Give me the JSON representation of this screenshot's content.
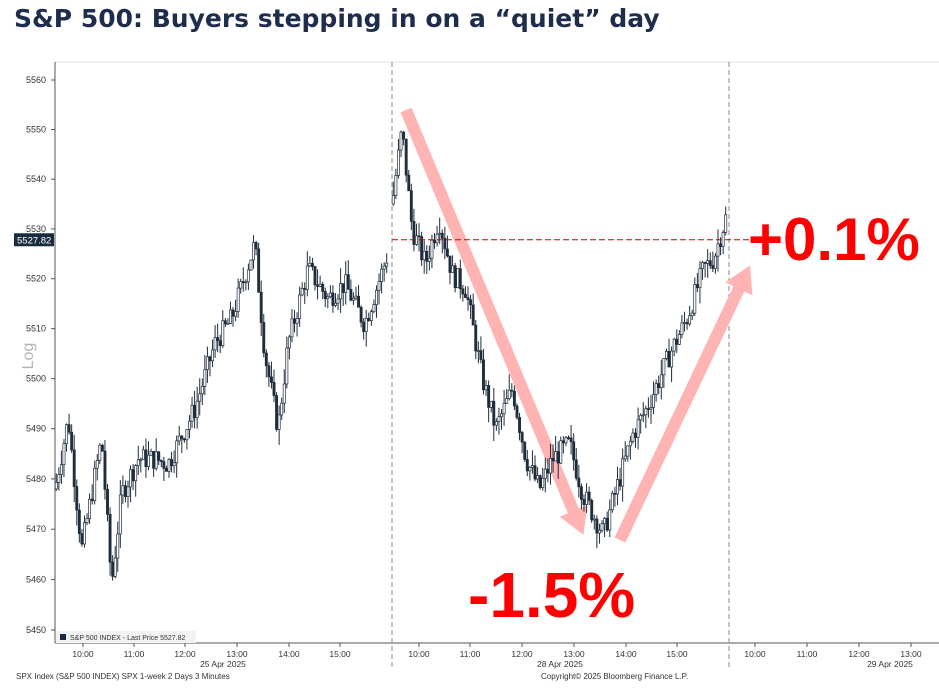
{
  "title": "S&P 500: Buyers stepping in on a “quiet” day",
  "annotations": {
    "down_move": "-1.5%",
    "up_move": "+0.1%"
  },
  "footer": {
    "left": "SPX Index (S&P 500 INDEX) SPX 1-week 2 Days 3 Minutes",
    "right": "Copyright© 2025 Bloomberg Finance L.P."
  },
  "colors": {
    "candle": "#1f2d3d",
    "arrow": "#ffb3b3",
    "last_price_line": "#cc0000",
    "label_bg": "#1a2b40",
    "annotation": "#ff0000"
  },
  "chart_data": {
    "type": "candlestick",
    "ylabel": "Log",
    "y_scale": "log",
    "ylim": [
      5448,
      5563
    ],
    "yticks": [
      5450,
      5460,
      5470,
      5480,
      5490,
      5500,
      5510,
      5520,
      5530,
      5540,
      5550,
      5560
    ],
    "last_price": 5527.82,
    "last_price_label": "5527.82",
    "legend": "S&P 500 INDEX - Last Price 5527.82",
    "sessions": [
      {
        "date": "25 Apr 2025",
        "ticks": [
          "10:00",
          "11:00",
          "12:00",
          "13:00",
          "14:00",
          "15:00"
        ],
        "path": [
          [
            0,
            5478
          ],
          [
            0.04,
            5492
          ],
          [
            0.08,
            5466
          ],
          [
            0.14,
            5488
          ],
          [
            0.17,
            5459
          ],
          [
            0.2,
            5477
          ],
          [
            0.25,
            5484
          ],
          [
            0.3,
            5484
          ],
          [
            0.34,
            5483
          ],
          [
            0.42,
            5494
          ],
          [
            0.48,
            5507
          ],
          [
            0.53,
            5512
          ],
          [
            0.6,
            5527
          ],
          [
            0.63,
            5505
          ],
          [
            0.67,
            5490
          ],
          [
            0.7,
            5507
          ],
          [
            0.76,
            5522
          ],
          [
            0.82,
            5516
          ],
          [
            0.87,
            5519
          ],
          [
            0.93,
            5511
          ],
          [
            1,
            5525
          ]
        ]
      },
      {
        "date": "28 Apr 2025",
        "ticks": [
          "10:00",
          "11:00",
          "12:00",
          "13:00",
          "14:00",
          "15:00"
        ],
        "path": [
          [
            0,
            5535
          ],
          [
            0.03,
            5550
          ],
          [
            0.06,
            5530
          ],
          [
            0.1,
            5523
          ],
          [
            0.14,
            5532
          ],
          [
            0.18,
            5521
          ],
          [
            0.22,
            5518
          ],
          [
            0.27,
            5500
          ],
          [
            0.31,
            5490
          ],
          [
            0.36,
            5498
          ],
          [
            0.4,
            5484
          ],
          [
            0.44,
            5478
          ],
          [
            0.48,
            5484
          ],
          [
            0.53,
            5487
          ],
          [
            0.57,
            5477
          ],
          [
            0.6,
            5473
          ],
          [
            0.63,
            5469
          ],
          [
            0.67,
            5478
          ],
          [
            0.72,
            5489
          ],
          [
            0.76,
            5494
          ],
          [
            0.83,
            5505
          ],
          [
            0.88,
            5512
          ],
          [
            0.93,
            5522
          ],
          [
            0.96,
            5524
          ],
          [
            1,
            5533
          ]
        ]
      },
      {
        "date": "29 Apr 2025",
        "ticks": [
          "10:00",
          "11:00",
          "12:00",
          "13:00"
        ],
        "path": []
      }
    ]
  }
}
